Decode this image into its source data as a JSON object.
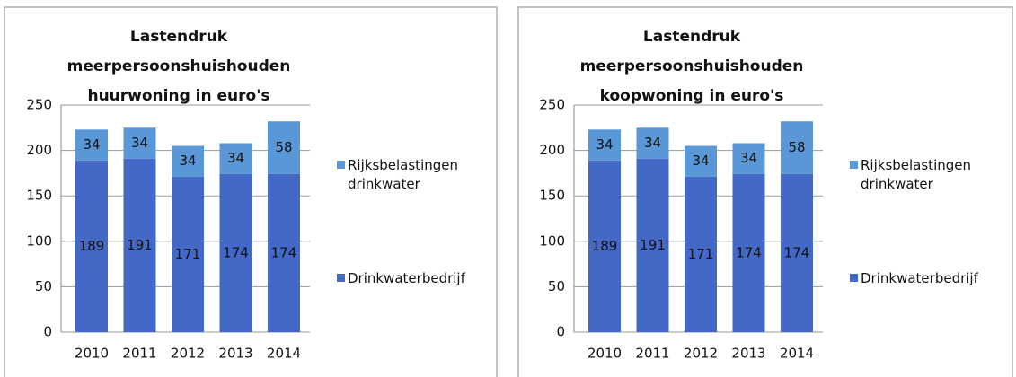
{
  "chart_data": [
    {
      "type": "stacked_bar",
      "title": "Lastendruk meerpersoonshuishouden huurwoning in euro's",
      "categories": [
        "2010",
        "2011",
        "2012",
        "2013",
        "2014"
      ],
      "series": [
        {
          "name": "Drinkwaterbedrijf",
          "color": "#4468c6",
          "values": [
            189,
            191,
            171,
            174,
            174
          ]
        },
        {
          "name": "Rijksbelastingen drinkwater",
          "color": "#5a97d6",
          "values": [
            34,
            34,
            34,
            34,
            58
          ]
        }
      ],
      "ylim": [
        0,
        250
      ],
      "yticks": [
        0,
        50,
        100,
        150,
        200,
        250
      ],
      "grid": true,
      "legend": "right"
    },
    {
      "type": "stacked_bar",
      "title": "Lastendruk meerpersoonshuishouden koopwoning in euro's",
      "categories": [
        "2010",
        "2011",
        "2012",
        "2013",
        "2014"
      ],
      "series": [
        {
          "name": "Drinkwaterbedrijf",
          "color": "#4468c6",
          "values": [
            189,
            191,
            171,
            174,
            174
          ]
        },
        {
          "name": "Rijksbelastingen drinkwater",
          "color": "#5a97d6",
          "values": [
            34,
            34,
            34,
            34,
            58
          ]
        }
      ],
      "ylim": [
        0,
        250
      ],
      "yticks": [
        0,
        50,
        100,
        150,
        200,
        250
      ],
      "grid": true,
      "legend": "right"
    }
  ]
}
